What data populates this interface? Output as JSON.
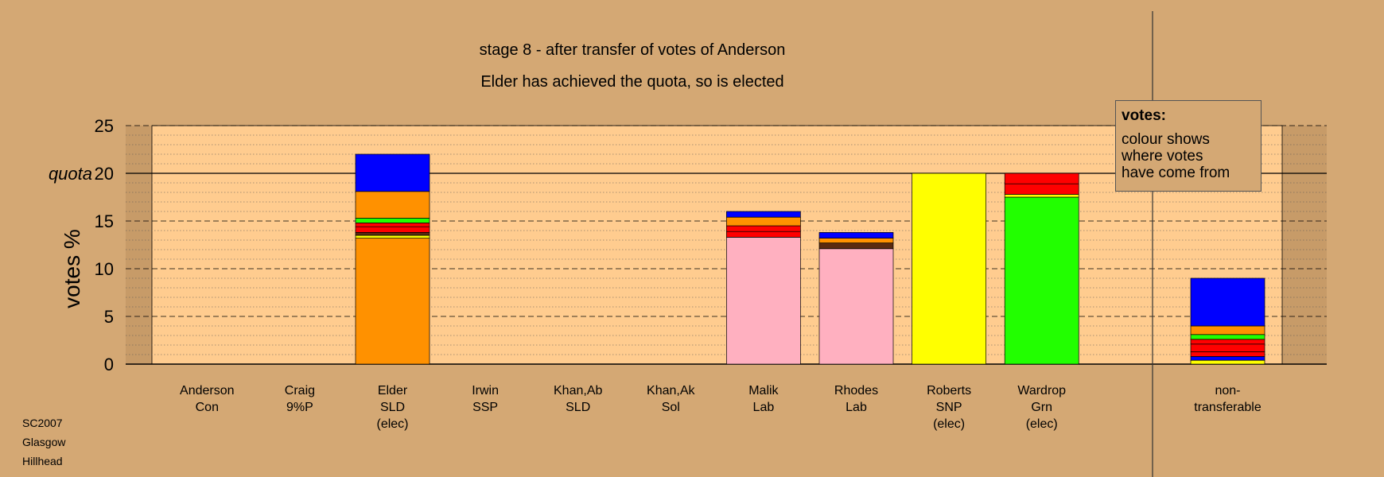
{
  "title": "stage 8 - after transfer of votes of Anderson",
  "subtitle": "Elder has achieved the quota, so is elected",
  "footer": [
    "SC2007",
    "Glasgow",
    "Hillhead"
  ],
  "legend": {
    "title": "votes:",
    "text": "colour shows\nwhere votes\nhave come from"
  },
  "colors": {
    "background": "#d4a874",
    "plot_area": "#ffcc8f",
    "Con": "#0000ff",
    "SLD": "#ff9100",
    "Lab": "#ffb0c0",
    "SNP": "#ffff00",
    "Grn": "#22ff00",
    "Other": "#ff0000",
    "Dark": "#5a2a10"
  },
  "chart_data": {
    "type": "bar",
    "stacked": true,
    "ylabel": "votes %",
    "ylim": [
      0,
      25
    ],
    "yticks": [
      0,
      5,
      10,
      15,
      20,
      25
    ],
    "quota": {
      "label": "quota",
      "value": 20
    },
    "grid": true,
    "candidates": [
      {
        "name": "Anderson",
        "party": "Con",
        "status": "",
        "segments": []
      },
      {
        "name": "Craig",
        "party": "9%P",
        "status": "",
        "segments": []
      },
      {
        "name": "Elder",
        "party": "SLD",
        "status": "(elec)",
        "segments": [
          {
            "color": "SLD",
            "value": 13.2
          },
          {
            "color": "SNP",
            "value": 0.3
          },
          {
            "color": "Dark",
            "value": 0.3
          },
          {
            "color": "Other",
            "value": 0.6
          },
          {
            "color": "Other",
            "value": 0.4
          },
          {
            "color": "Grn",
            "value": 0.5
          },
          {
            "color": "SLD",
            "value": 2.8
          },
          {
            "color": "Con",
            "value": 3.9
          }
        ]
      },
      {
        "name": "Irwin",
        "party": "SSP",
        "status": "",
        "segments": []
      },
      {
        "name": "Khan,Ab",
        "party": "SLD",
        "status": "",
        "segments": []
      },
      {
        "name": "Khan,Ak",
        "party": "Sol",
        "status": "",
        "segments": []
      },
      {
        "name": "Malik",
        "party": "Lab",
        "status": "",
        "segments": [
          {
            "color": "Lab",
            "value": 13.3
          },
          {
            "color": "Other",
            "value": 0.6
          },
          {
            "color": "Other",
            "value": 0.6
          },
          {
            "color": "SLD",
            "value": 0.9
          },
          {
            "color": "Con",
            "value": 0.6
          }
        ]
      },
      {
        "name": "Rhodes",
        "party": "Lab",
        "status": "",
        "segments": [
          {
            "color": "Lab",
            "value": 12.1
          },
          {
            "color": "Dark",
            "value": 0.6
          },
          {
            "color": "SLD",
            "value": 0.5
          },
          {
            "color": "Con",
            "value": 0.6
          }
        ]
      },
      {
        "name": "Roberts",
        "party": "SNP",
        "status": "(elec)",
        "segments": [
          {
            "color": "SNP",
            "value": 20.0
          }
        ]
      },
      {
        "name": "Wardrop",
        "party": "Grn",
        "status": "(elec)",
        "segments": [
          {
            "color": "Grn",
            "value": 17.5
          },
          {
            "color": "SNP",
            "value": 0.3
          },
          {
            "color": "Other",
            "value": 1.1
          },
          {
            "color": "Other",
            "value": 1.1
          }
        ]
      }
    ],
    "non_transferable": {
      "label": "non-\ntransferable",
      "segments": [
        {
          "color": "SNP",
          "value": 0.4
        },
        {
          "color": "Con",
          "value": 0.4
        },
        {
          "color": "Other",
          "value": 0.5
        },
        {
          "color": "Other",
          "value": 0.8
        },
        {
          "color": "Other",
          "value": 0.5
        },
        {
          "color": "Grn",
          "value": 0.5
        },
        {
          "color": "SLD",
          "value": 0.9
        },
        {
          "color": "Con",
          "value": 5.0
        }
      ]
    }
  }
}
